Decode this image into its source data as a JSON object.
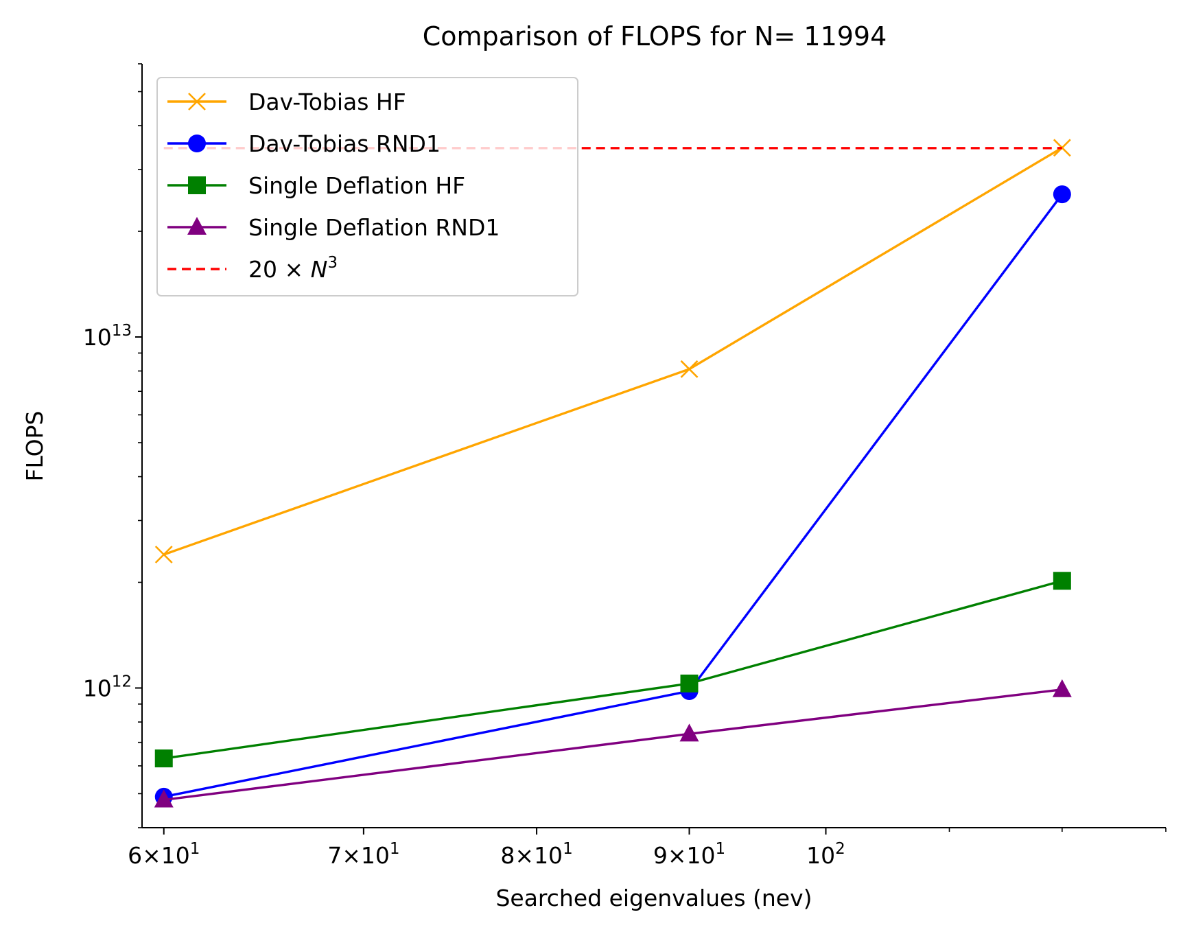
{
  "chart_data": {
    "type": "line",
    "title": "Comparison of FLOPS for N= 11994",
    "xlabel": "Searched eigenvalues (nev)",
    "ylabel": "FLOPS",
    "xscale": "log",
    "yscale": "log",
    "xlim": [
      59,
      130
    ],
    "ylim": [
      400000000000,
      60000000000000
    ],
    "grid": false,
    "legend_position": "top-left",
    "x": [
      60,
      90,
      120
    ],
    "x_ticks": [
      {
        "value": 60,
        "mantissa": "6",
        "base": "10",
        "exp": "1"
      },
      {
        "value": 70,
        "mantissa": "7",
        "base": "10",
        "exp": "1"
      },
      {
        "value": 80,
        "mantissa": "8",
        "base": "10",
        "exp": "1"
      },
      {
        "value": 90,
        "mantissa": "9",
        "base": "10",
        "exp": "1"
      },
      {
        "value": 100,
        "mantissa": "",
        "base": "10",
        "exp": "2"
      }
    ],
    "y_ticks": [
      {
        "value": 1000000000000,
        "base": "10",
        "exp": "12"
      },
      {
        "value": 10000000000000,
        "base": "10",
        "exp": "13"
      }
    ],
    "series": [
      {
        "name": "Dav-Tobias HF",
        "color": "#ffa500",
        "marker": "x",
        "dash": false,
        "values": [
          2400000000000,
          8100000000000,
          34600000000000
        ]
      },
      {
        "name": "Dav-Tobias RND1",
        "color": "#0000ff",
        "marker": "circle",
        "dash": false,
        "values": [
          490000000000,
          980000000000,
          25500000000000
        ]
      },
      {
        "name": "Single Deflation HF",
        "color": "#008000",
        "marker": "square",
        "dash": false,
        "values": [
          630000000000,
          1030000000000,
          2020000000000
        ]
      },
      {
        "name": "Single Deflation RND1",
        "color": "#800080",
        "marker": "triangle",
        "dash": false,
        "values": [
          480000000000,
          740000000000,
          990000000000
        ]
      },
      {
        "name": "20 × N³",
        "label_parts": {
          "coef": "20",
          "times": "×",
          "var": "N",
          "exp": "3"
        },
        "color": "#ff0000",
        "marker": "none",
        "dash": true,
        "values": [
          34510000000000,
          34510000000000,
          34510000000000
        ]
      }
    ]
  }
}
